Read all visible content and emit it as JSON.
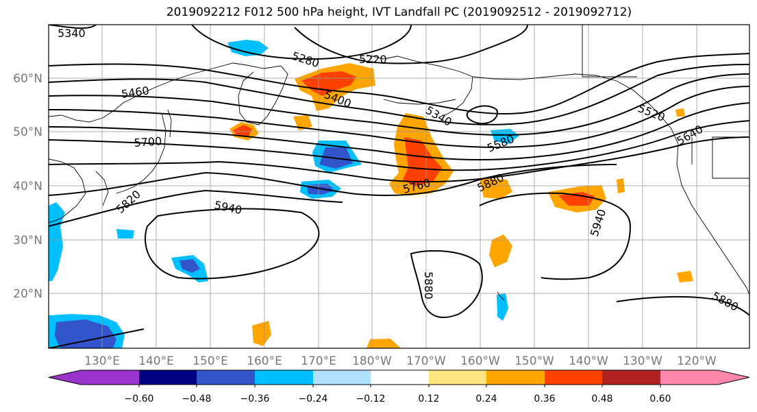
{
  "title": "2019092212 F012 500 hPa height, IVT Landfall PC (2019092512 - 2019092712)",
  "map": {
    "lat_labels": [
      "60°N",
      "50°N",
      "40°N",
      "30°N",
      "20°N"
    ],
    "lon_labels": [
      "130°E",
      "140°E",
      "150°E",
      "160°E",
      "170°E",
      "180°W",
      "170°W",
      "160°W",
      "150°W",
      "140°W",
      "130°W",
      "120°W"
    ],
    "contour_labels": [
      "5340",
      "5280",
      "5220",
      "5460",
      "5400",
      "5340",
      "5520",
      "5700",
      "5580",
      "5640",
      "5760",
      "5880",
      "5820",
      "5940",
      "5940",
      "5880",
      "5880"
    ]
  },
  "colorbar": {
    "ticks": [
      "−0.60",
      "−0.48",
      "−0.36",
      "−0.24",
      "−0.12",
      "0.12",
      "0.24",
      "0.36",
      "0.48",
      "0.60"
    ],
    "colors": [
      "#9933cc",
      "#000080",
      "#3355cc",
      "#00bfff",
      "#b0e2ff",
      "#ffffff",
      "#ffe680",
      "#ffa500",
      "#ff4000",
      "#b22222",
      "#ff88aa"
    ]
  }
}
